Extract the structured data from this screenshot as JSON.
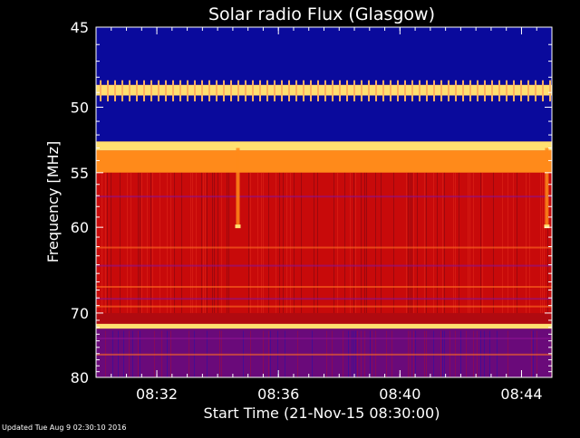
{
  "chart_data": {
    "type": "heatmap",
    "title": "Solar radio Flux (Glasgow)",
    "xlabel": "Start Time (21-Nov-15 08:30:00)",
    "ylabel": "Frequency [MHz]",
    "x_unit": "time (HH:MM)",
    "xlim": [
      "08:30:00",
      "08:45:00"
    ],
    "x_ticks": [
      "08:32",
      "08:36",
      "08:40",
      "08:44"
    ],
    "ylim": [
      45,
      80
    ],
    "y_ticks": [
      45,
      50,
      55,
      60,
      70,
      80
    ],
    "y_scale": "reciprocal",
    "colormap": "blue-red-yellow (low to high intensity)",
    "bands": [
      {
        "from": 45,
        "to": 48.5,
        "level": "low"
      },
      {
        "from": 48.5,
        "to": 49.2,
        "level": "very high"
      },
      {
        "from": 49.2,
        "to": 52.5,
        "level": "low"
      },
      {
        "from": 52.5,
        "to": 53.2,
        "level": "very high"
      },
      {
        "from": 53.2,
        "to": 55,
        "level": "high"
      },
      {
        "from": 55,
        "to": 70,
        "level": "medium"
      },
      {
        "from": 71.5,
        "to": 72.2,
        "level": "very high"
      },
      {
        "from": 72.2,
        "to": 80,
        "level": "low-medium"
      }
    ],
    "events": [
      {
        "time": "08:34:40",
        "freq_from": 53,
        "freq_to": 60,
        "note": "brief vertical enhancement"
      },
      {
        "time": "08:44:50",
        "freq_from": 53,
        "freq_to": 60,
        "note": "brief vertical enhancement"
      }
    ]
  },
  "footer": {
    "updated": "Updated Tue Aug  9 02:30:10 2016"
  },
  "colors": {
    "background": "#000000",
    "low": "#0a0a9c",
    "mid": "#c80a0a",
    "high": "#ff8a1a",
    "peak": "#ffe070",
    "frame": "#ffffff"
  }
}
